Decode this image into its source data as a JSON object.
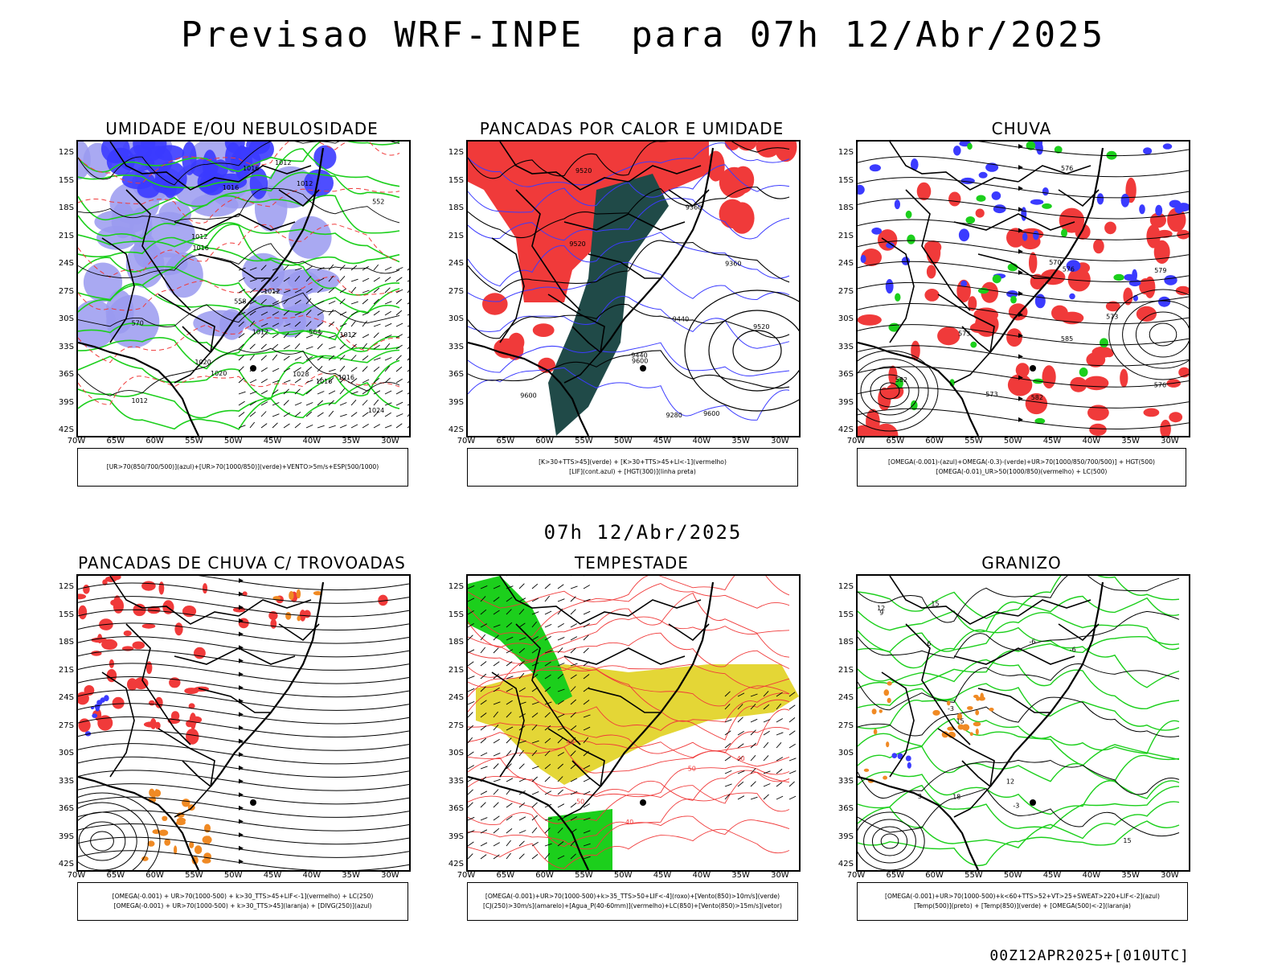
{
  "title": "Previsao WRF-INPE  para 07h 12/Abr/2025",
  "mid_date": "07h 12/Abr/2025",
  "footer": "00Z12APR2025+[010UTC]",
  "lat_labels": [
    "12S",
    "15S",
    "18S",
    "21S",
    "24S",
    "27S",
    "30S",
    "33S",
    "36S",
    "39S",
    "42S"
  ],
  "lon_labels": [
    "70W",
    "65W",
    "60W",
    "55W",
    "50W",
    "45W",
    "40W",
    "35W",
    "30W"
  ],
  "colors": {
    "blue": "#3b3bff",
    "lightblue": "#9a9af0",
    "green": "#1ccf1c",
    "red": "#f03a3a",
    "darkteal": "#204a48",
    "yellow": "#e4d636",
    "orange": "#f08a24"
  },
  "panels": [
    {
      "title": "UMIDADE E/OU NEBULOSIDADE",
      "legend": [
        "[UR>70(850/700/500)](azul)+[UR>70(1000/850)](verde)+VENTO>5m/s+ESP(500/1000)"
      ],
      "labels": [
        "1012",
        "1012",
        "1012",
        "1012",
        "1016",
        "1012",
        "1016",
        "1012",
        "1016",
        "1020",
        "1024",
        "1016",
        "1020",
        "1016",
        "1028",
        "1012",
        "564",
        "570",
        "558",
        "552"
      ]
    },
    {
      "title": "PANCADAS POR CALOR E UMIDADE",
      "legend": [
        "[K>30+TTS>45](verde) + [K>30+TTS>45+LI<-1](vermelho)",
        "[LIF](cont.azul) + [HGT(300)](linha preta)"
      ],
      "labels": [
        "9520",
        "9600",
        "9600",
        "9600",
        "9440",
        "9520",
        "9520",
        "9360",
        "9280",
        "9360",
        "9440"
      ]
    },
    {
      "title": "CHUVA",
      "legend": [
        "[OMEGA(-0.001)-(azul)+OMEGA(-0.3)-(verde)+UR>70(1000/850/700/500)] + HGT(500)",
        "[OMEGA(-0.01)_UR>50(1000/850)(vermelho) + LC(500)"
      ],
      "labels": [
        "585",
        "582",
        "582",
        "576",
        "579",
        "573",
        "576",
        "573",
        "570",
        "576",
        "573"
      ]
    },
    {
      "title": "PANCADAS DE CHUVA C/ TROVOADAS",
      "legend": [
        "[OMEGA(-0.001) + UR>70(1000-500) + k>30_TTS>45+LIF<-1](vermelho) + LC(250)",
        "[OMEGA(-0.001) + UR>70(1000-500) + k>30_TTS>45](laranja) + [DIVG(250)](azul)"
      ],
      "labels": []
    },
    {
      "title": "TEMPESTADE",
      "legend": [
        "[OMEGA(-0.001)+UR>70(1000-500)+k>35_TTS>50+LIF<-4](roxo)+[Vento(850)>10m/s](verde)",
        "[CJ(250)>30m/s](amarelo)+[Agua_P(40-60mm)](vermelho)+LC(850)+[Vento(850)>15m/s](vetor)"
      ],
      "labels": [
        "50",
        "40",
        "40",
        "40",
        "50"
      ]
    },
    {
      "title": "GRANIZO",
      "legend": [
        "[OMEGA(-0.001)+UR>70(1000-500)+k<60+TTS>52+VT>25+SWEAT>220+LIF<-2](azul)",
        "[Temp(500)](preto) + [Temp(850)](verde) + [OMEGA(500)<-2](laranja)"
      ],
      "labels": [
        "-6",
        "-6",
        "12",
        "15",
        "12",
        "3",
        "-3",
        "-3",
        "15",
        "15",
        "18",
        "6",
        "9"
      ]
    }
  ]
}
